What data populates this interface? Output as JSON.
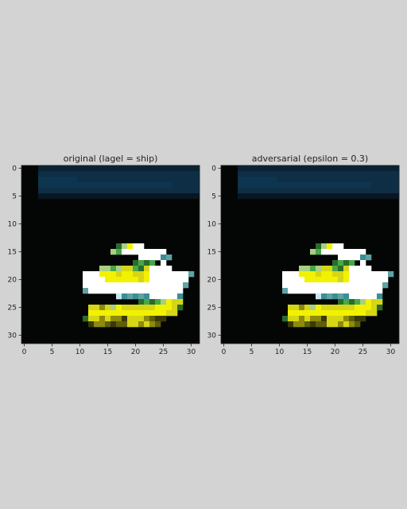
{
  "chart_data": [
    {
      "type": "heatmap",
      "title": "original (lagel = ship)",
      "xlim": [
        0,
        31
      ],
      "ylim": [
        0,
        31
      ],
      "xticks": [
        0,
        5,
        10,
        15,
        20,
        25,
        30
      ],
      "yticks": [
        0,
        5,
        10,
        15,
        20,
        25,
        30
      ],
      "grid": false,
      "y_axis_inverted": true,
      "image": {
        "width": 32,
        "height": 32,
        "palette": {
          ".": "#030604",
          "n": "#0a1622",
          "m": "#0b2233",
          "b": "#0d2e44",
          "d": "#0e3550",
          "y": "#f2f200",
          "Y": "#d6d616",
          "o": "#8e8a0e",
          "O": "#5e5e0b",
          "k": "#3a3a08",
          "W": "#ffffff",
          "w": "#e6eef3",
          "g": "#2a6b2a",
          "G": "#46a846",
          "L": "#a8d080",
          "t": "#5fa3a3",
          "T": "#3c8e96",
          "s": "#c8e8f0"
        },
        "rows": [
          "...mmmmmmmmmmmmmmmmmmmmmmmmmmmmm",
          "...bbbbbbbbbbbbbbbbbbbbbbbbbbbbb",
          "...dddddddbbbbbbbbbbbbbbbbbbbbbb",
          "...ddddddddddddddddddddddddbbbbb",
          "...bbbbbbbbbbbbbbbbbbbbbbbbbbbbb",
          "...nnnnnnnnnnnnnnnnnnnnnnnnnnnnn",
          "................................",
          "................................",
          "................................",
          "................................",
          "................................",
          "................................",
          "................................",
          "...............................·",
          ".................gLyWW..........",
          "................LGWWWWWWWW......",
          ".....................WWWWTt.....",
          "....................gGgG.W......",
          "..............LLGLYYGgYWWWW.....",
          "...........WWWyyyYyyYYyWWWWWWWt.",
          "...........WWWWyyyyyyYyWWWWWWW..",
          "...........WWWWWWWWWWWWWWWWWWt..",
          "...........tWWWWWWWWWWWWWWWWW...",
          ".................sTtTtTWWWWWT...",
          ".....................gGgGLyYY...",
          "............YYoYLyYYYYYYyyyYg...",
          "............yyyyyyyyyyyyyyYY....",
          "...........gYYoYookYYYoOkk......",
          "............kooOkOOYYoYoO.......",
          "................................",
          "................................",
          "................................"
        ]
      }
    },
    {
      "type": "heatmap",
      "title": "adversarial (epsilon = 0.3)",
      "xlim": [
        0,
        31
      ],
      "ylim": [
        0,
        31
      ],
      "xticks": [
        0,
        5,
        10,
        15,
        20,
        25,
        30
      ],
      "yticks": [
        0,
        5,
        10,
        15,
        20,
        25,
        30
      ],
      "grid": false,
      "y_axis_inverted": true,
      "image": {
        "width": 32,
        "height": 32,
        "same_as_panel": 0
      }
    }
  ]
}
